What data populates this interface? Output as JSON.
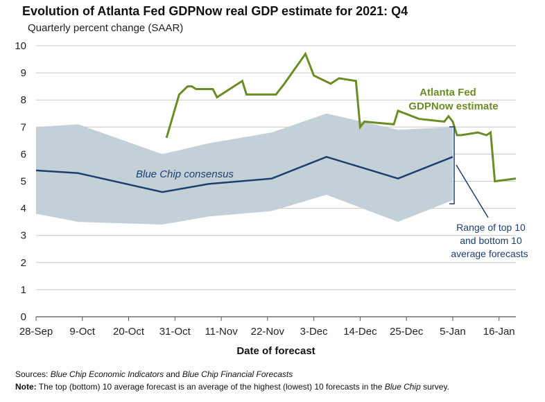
{
  "title": "Evolution of Atlanta Fed GDPNow real GDP estimate for 2021: Q4",
  "subtitle": "Quarterly percent change (SAAR)",
  "footer": {
    "sources_label": "Sources:",
    "sources_text_1": "Blue Chip Economic Indicators",
    "sources_text_2": " and ",
    "sources_text_3": "Blue Chip Financial Forecasts",
    "note_label": "Note:",
    "note_text_1": " The top (bottom) 10 average forecast is an average of the highest (lowest) 10 forecasts in the ",
    "note_text_2": "Blue Chip",
    "note_text_3": " survey."
  },
  "chart_data": {
    "type": "line",
    "xlabel": "Date of forecast",
    "ylabel": "",
    "ylim": [
      0,
      10
    ],
    "yticks": [
      0,
      1,
      2,
      3,
      4,
      5,
      6,
      7,
      8,
      9,
      10
    ],
    "xlim": [
      "2021-09-28",
      "2022-01-20"
    ],
    "xticks": [
      "2021-09-28",
      "2021-10-09",
      "2021-10-20",
      "2021-10-31",
      "2021-11-11",
      "2021-11-22",
      "2021-12-03",
      "2021-12-14",
      "2021-12-25",
      "2022-01-05",
      "2022-01-16"
    ],
    "xtick_labels": [
      "28-Sep",
      "9-Oct",
      "20-Oct",
      "31-Oct",
      "11-Nov",
      "22-Nov",
      "3-Dec",
      "14-Dec",
      "25-Dec",
      "5-Jan",
      "16-Jan"
    ],
    "grid": true,
    "annotations": {
      "gdpnow": "Atlanta Fed GDPNow estimate",
      "gdpnow_line1": "Atlanta Fed",
      "gdpnow_line2": "GDPNow estimate",
      "bluechip": "Blue Chip consensus",
      "range_line1": "Range of top 10",
      "range_line2": "and bottom 10",
      "range_line3": "average forecasts"
    },
    "colors": {
      "gdpnow": "#6b8c25",
      "bluechip": "#1e3f6e",
      "band": "#c4d0d8",
      "grid": "#c8c8c8"
    },
    "series": [
      {
        "x": [
          "2021-10-29",
          "2021-11-01",
          "2021-11-03",
          "2021-11-04",
          "2021-11-05",
          "2021-11-09",
          "2021-11-10",
          "2021-11-16",
          "2021-11-17",
          "2021-11-24",
          "2021-11-26",
          "2021-12-01",
          "2021-12-03",
          "2021-12-07",
          "2021-12-09",
          "2021-12-13",
          "2021-12-14",
          "2021-12-15",
          "2021-12-22",
          "2021-12-23",
          "2021-12-28",
          "2022-01-03",
          "2022-01-04",
          "2022-01-05",
          "2022-01-06",
          "2022-01-07",
          "2022-01-11",
          "2022-01-13",
          "2022-01-14",
          "2022-01-15",
          "2022-01-20"
        ],
        "values": [
          6.6,
          8.2,
          8.5,
          8.5,
          8.4,
          8.4,
          8.1,
          8.7,
          8.2,
          8.2,
          8.6,
          9.7,
          8.9,
          8.6,
          8.8,
          8.7,
          7.0,
          7.2,
          7.1,
          7.6,
          7.3,
          7.2,
          7.4,
          7.2,
          6.7,
          6.7,
          6.8,
          6.7,
          6.8,
          5.0,
          5.1
        ]
      },
      {
        "x": [
          "2021-09-28",
          "2021-10-08",
          "2021-10-28",
          "2021-11-08",
          "2021-11-23",
          "2021-12-06",
          "2021-12-23",
          "2022-01-05"
        ],
        "values": [
          5.4,
          5.3,
          4.6,
          4.9,
          5.1,
          5.9,
          5.1,
          5.9
        ]
      },
      {
        "x": [
          "2021-09-28",
          "2021-10-08",
          "2021-10-28",
          "2021-11-08",
          "2021-11-23",
          "2021-12-06",
          "2021-12-23",
          "2022-01-05"
        ],
        "upper": [
          7.0,
          7.1,
          6.0,
          6.4,
          6.8,
          7.5,
          6.9,
          7.0
        ],
        "lower": [
          3.8,
          3.5,
          3.4,
          3.7,
          3.9,
          4.5,
          3.5,
          4.3
        ]
      }
    ]
  }
}
